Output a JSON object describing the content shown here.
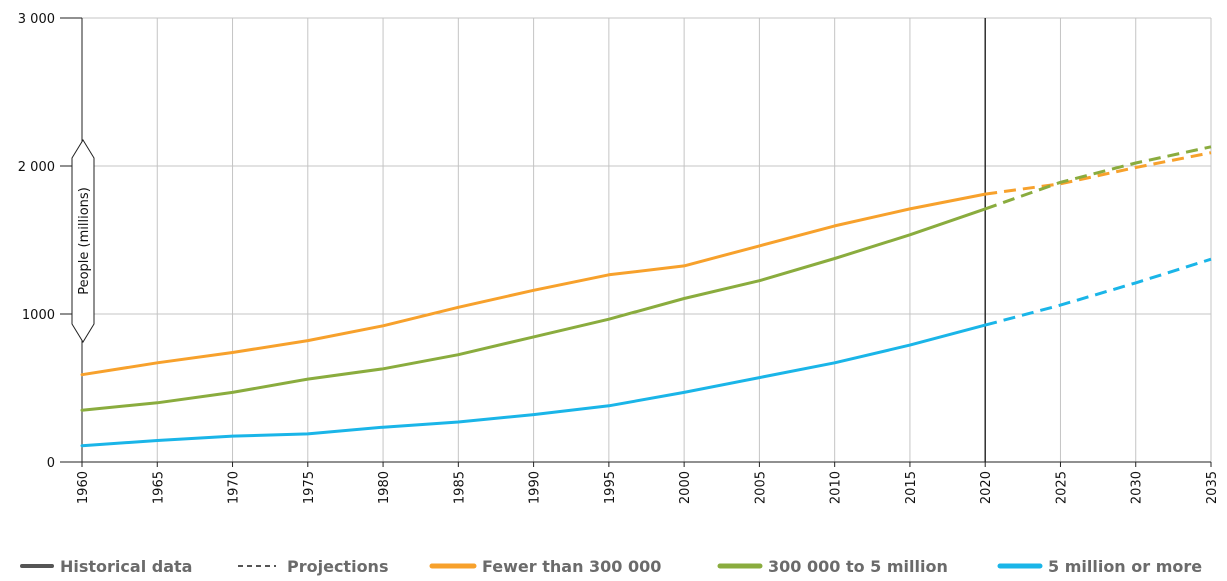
{
  "chart_data": {
    "type": "line",
    "x": [
      1960,
      1965,
      1970,
      1975,
      1980,
      1985,
      1990,
      1995,
      2000,
      2005,
      2010,
      2015,
      2020,
      2025,
      2030,
      2035
    ],
    "ylabel": "People (millions)",
    "ylim": [
      0,
      3000
    ],
    "yticks": [
      0,
      1000,
      2000,
      3000
    ],
    "ytick_labels": [
      "0",
      "1000",
      "2 000",
      "3 000"
    ],
    "projection_start": 2020,
    "grid": true,
    "series": [
      {
        "name": "Fewer than 300 000",
        "color": "#f7a12c",
        "values": [
          590,
          670,
          740,
          820,
          920,
          1045,
          1160,
          1265,
          1325,
          1460,
          1595,
          1710,
          1810,
          1880,
          1990,
          2090
        ]
      },
      {
        "name": "300 000 to 5 million",
        "color": "#8aac3e",
        "values": [
          350,
          400,
          470,
          560,
          630,
          725,
          845,
          965,
          1105,
          1225,
          1375,
          1535,
          1710,
          1890,
          2020,
          2130
        ]
      },
      {
        "name": "5 million or more",
        "color": "#1ab5e8",
        "values": [
          110,
          145,
          175,
          190,
          235,
          270,
          320,
          380,
          470,
          570,
          670,
          790,
          925,
          1060,
          1210,
          1370
        ]
      }
    ],
    "legend": {
      "position": "bottom",
      "historical": "Historical data",
      "projections": "Projections",
      "historical_color": "#555555"
    }
  }
}
